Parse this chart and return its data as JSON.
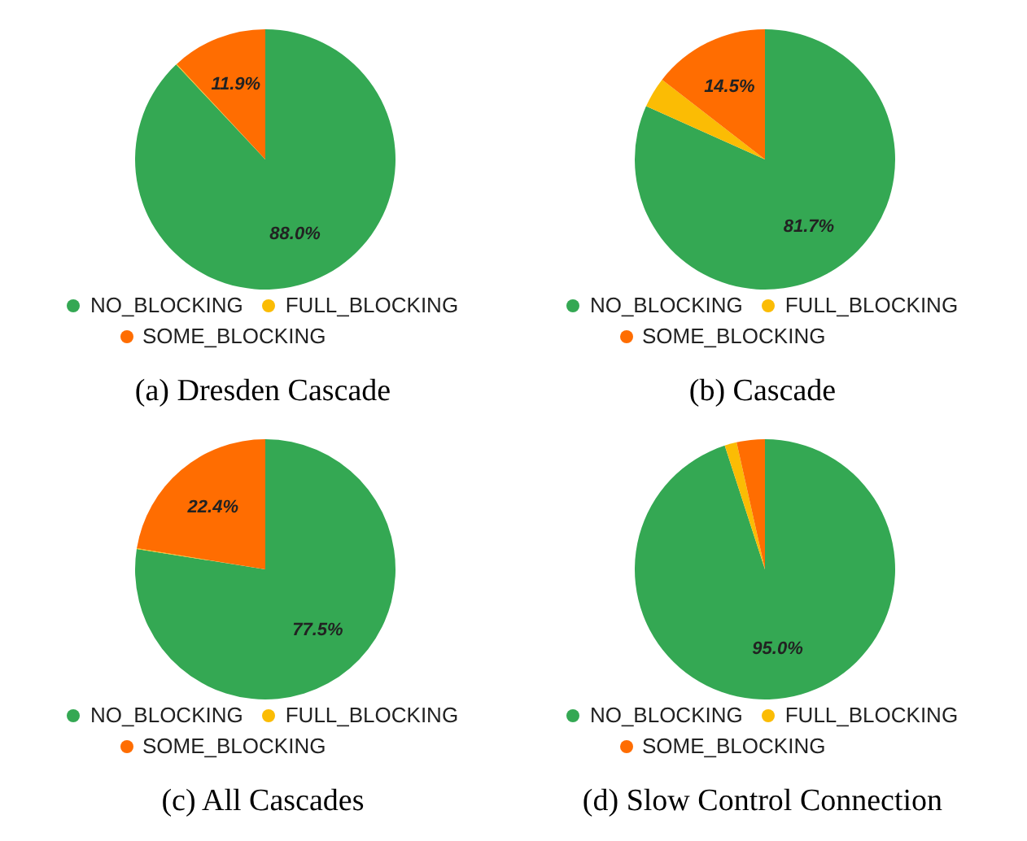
{
  "chart_data": [
    {
      "type": "pie",
      "title": "(a) Dresden Cascade",
      "categories": [
        "NO_BLOCKING",
        "FULL_BLOCKING",
        "SOME_BLOCKING"
      ],
      "values": [
        88.0,
        0.1,
        11.9
      ],
      "colors": [
        "#34a853",
        "#fbbc04",
        "#ff6d01"
      ],
      "value_labels": [
        "88.0%",
        null,
        "11.9%"
      ],
      "legend": "bottom"
    },
    {
      "type": "pie",
      "title": "(b) Cascade",
      "categories": [
        "NO_BLOCKING",
        "FULL_BLOCKING",
        "SOME_BLOCKING"
      ],
      "values": [
        81.7,
        3.8,
        14.5
      ],
      "colors": [
        "#34a853",
        "#fbbc04",
        "#ff6d01"
      ],
      "value_labels": [
        "81.7%",
        null,
        "14.5%"
      ],
      "legend": "bottom"
    },
    {
      "type": "pie",
      "title": "(c) All Cascades",
      "categories": [
        "NO_BLOCKING",
        "FULL_BLOCKING",
        "SOME_BLOCKING"
      ],
      "values": [
        77.5,
        0.1,
        22.4
      ],
      "colors": [
        "#34a853",
        "#fbbc04",
        "#ff6d01"
      ],
      "value_labels": [
        "77.5%",
        null,
        "22.4%"
      ],
      "legend": "bottom"
    },
    {
      "type": "pie",
      "title": "(d) Slow Control Connection",
      "categories": [
        "NO_BLOCKING",
        "FULL_BLOCKING",
        "SOME_BLOCKING"
      ],
      "values": [
        95.0,
        1.5,
        3.5
      ],
      "colors": [
        "#34a853",
        "#fbbc04",
        "#ff6d01"
      ],
      "value_labels": [
        "95.0%",
        null,
        null
      ],
      "legend": "bottom"
    }
  ]
}
